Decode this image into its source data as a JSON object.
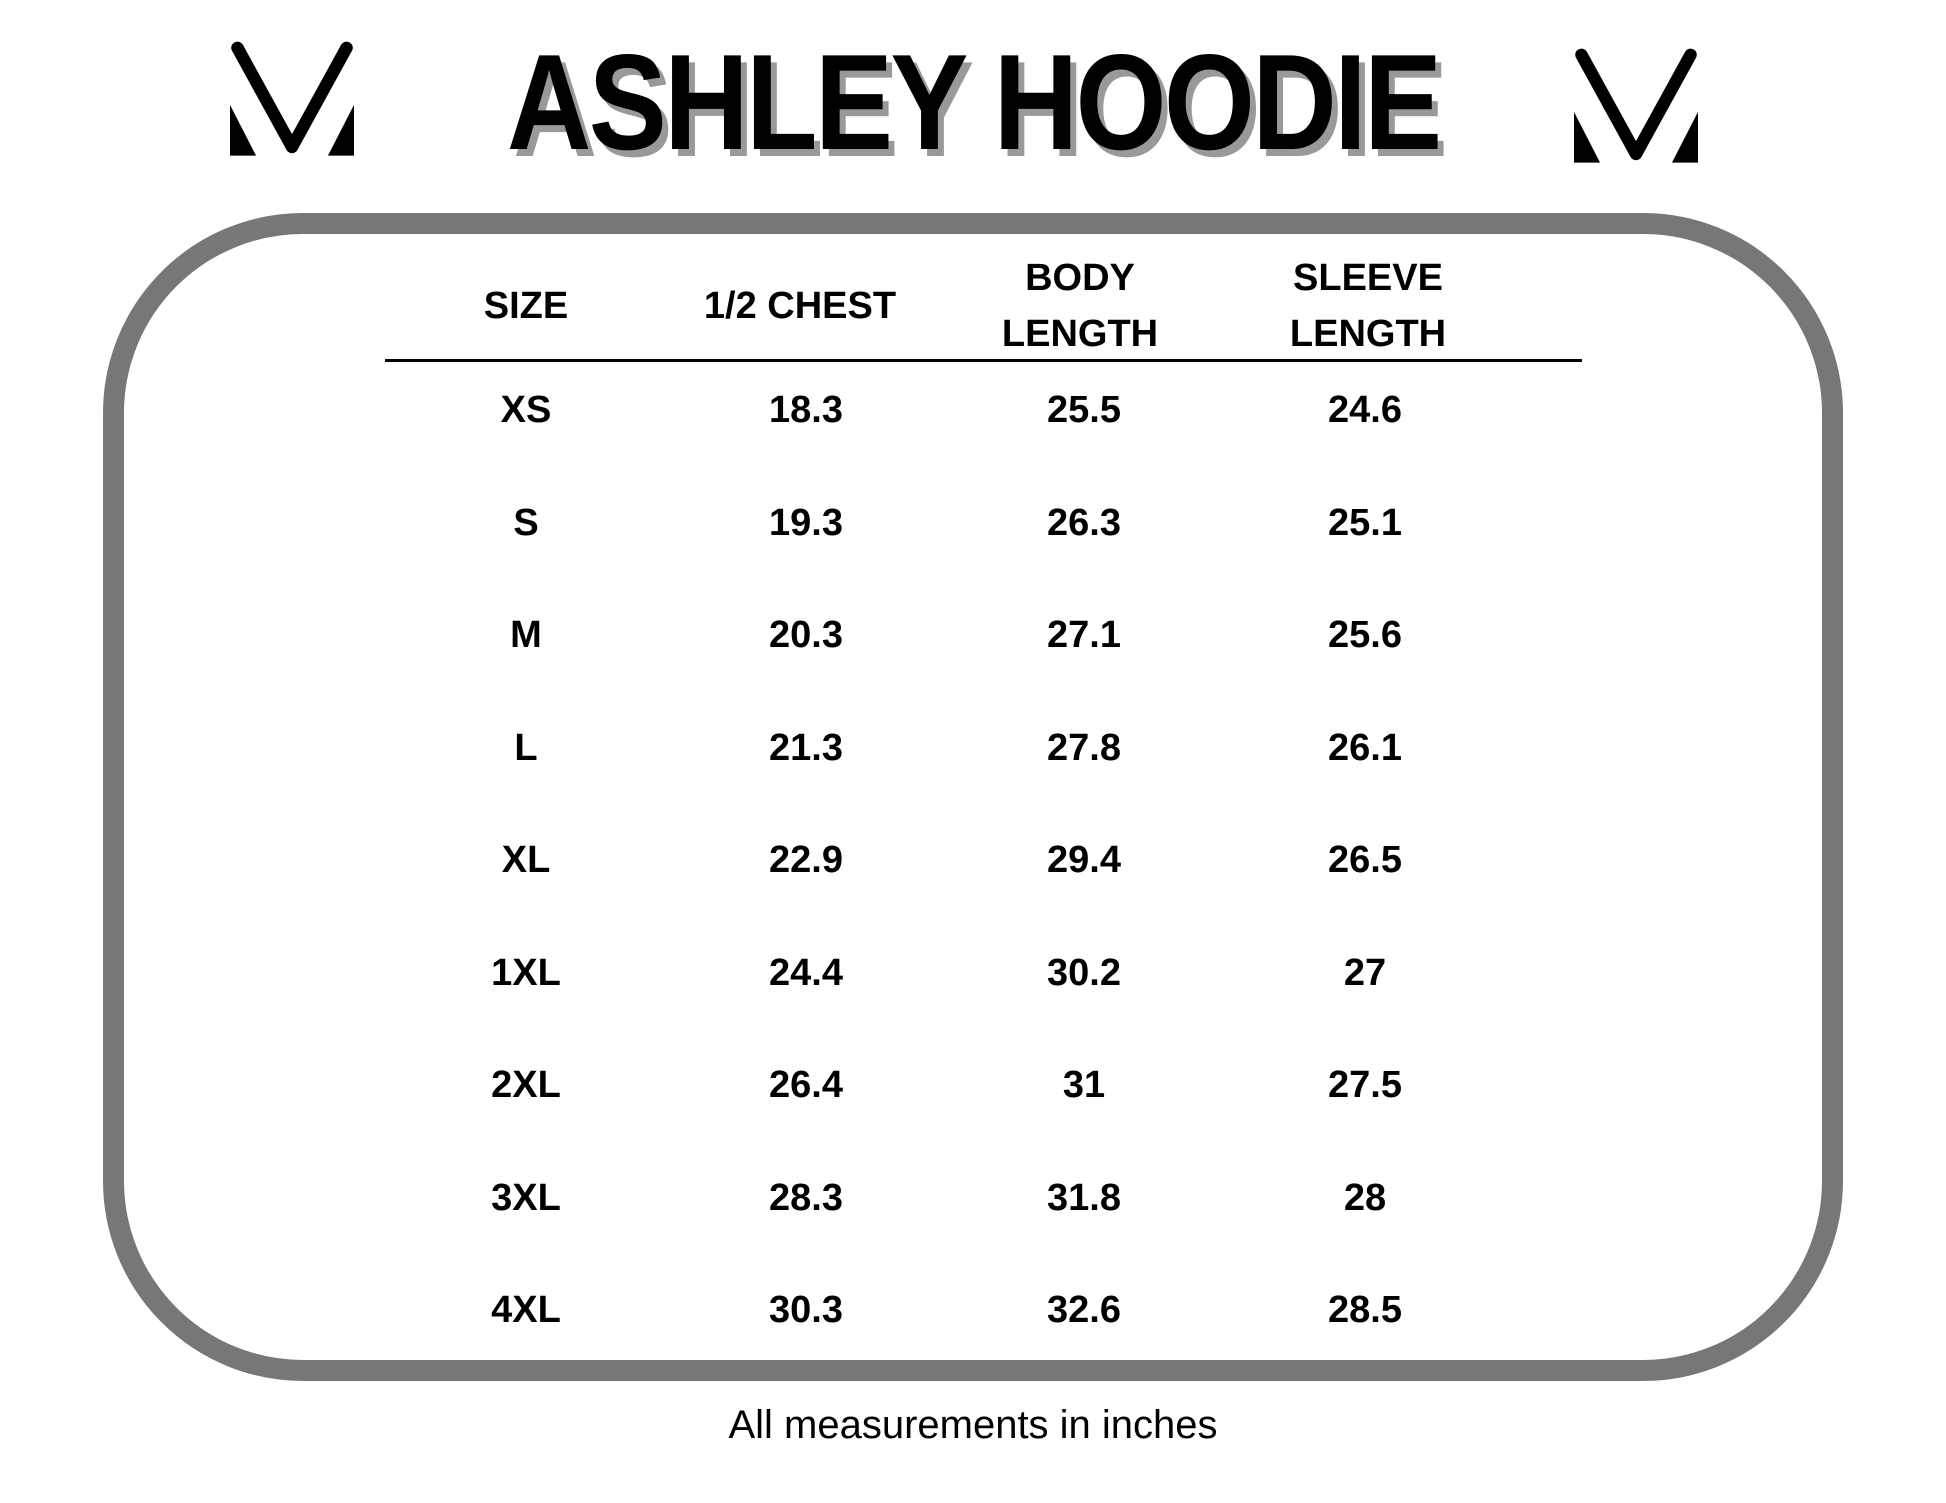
{
  "title": "ASHLEY HOODIE",
  "logo_icon": "v-monogram-logo",
  "frame_color": "#777777",
  "columns": [
    {
      "label": "SIZE"
    },
    {
      "label": "1/2 CHEST"
    },
    {
      "label": "BODY\nLENGTH",
      "line1": "BODY",
      "line2": "LENGTH"
    },
    {
      "label": "SLEEVE\nLENGTH",
      "line1": "SLEEVE",
      "line2": "LENGTH"
    }
  ],
  "rows": [
    [
      "XS",
      "18.3",
      "25.5",
      "24.6"
    ],
    [
      "S",
      "19.3",
      "26.3",
      "25.1"
    ],
    [
      "M",
      "20.3",
      "27.1",
      "25.6"
    ],
    [
      "L",
      "21.3",
      "27.8",
      "26.1"
    ],
    [
      "XL",
      "22.9",
      "29.4",
      "26.5"
    ],
    [
      "1XL",
      "24.4",
      "30.2",
      "27"
    ],
    [
      "2XL",
      "26.4",
      "31",
      "27.5"
    ],
    [
      "3XL",
      "28.3",
      "31.8",
      "28"
    ],
    [
      "4XL",
      "30.3",
      "32.6",
      "28.5"
    ]
  ],
  "footer": "All measurements in inches"
}
